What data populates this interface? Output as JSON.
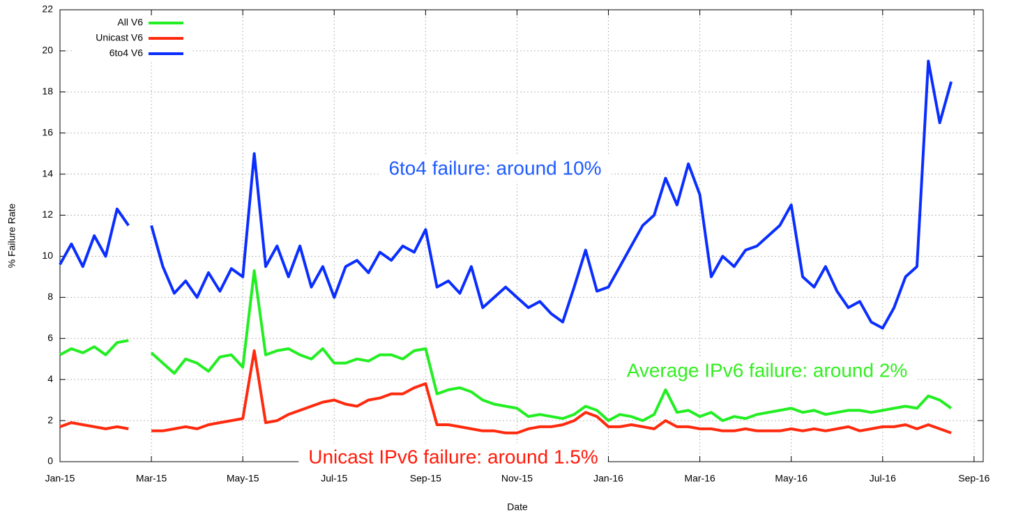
{
  "chart_data": {
    "type": "line",
    "x_label": "Date",
    "y_label": "% Failure Rate",
    "xlim": [
      0,
      20.2
    ],
    "ylim": [
      0,
      22
    ],
    "xticks": [
      {
        "value": 0,
        "label": "Jan-15"
      },
      {
        "value": 2,
        "label": "Mar-15"
      },
      {
        "value": 4,
        "label": "May-15"
      },
      {
        "value": 6,
        "label": "Jul-15"
      },
      {
        "value": 8,
        "label": "Sep-15"
      },
      {
        "value": 10,
        "label": "Nov-15"
      },
      {
        "value": 12,
        "label": "Jan-16"
      },
      {
        "value": 14,
        "label": "Mar-16"
      },
      {
        "value": 16,
        "label": "May-16"
      },
      {
        "value": 18,
        "label": "Jul-16"
      },
      {
        "value": 20,
        "label": "Sep-16"
      }
    ],
    "yticks": [
      0,
      2,
      4,
      6,
      8,
      10,
      12,
      14,
      16,
      18,
      20,
      22
    ],
    "grid": true,
    "legend": "upper left",
    "x": [
      0,
      0.25,
      0.5,
      0.75,
      1,
      1.25,
      1.5,
      1.75,
      2,
      2.25,
      2.5,
      2.75,
      3,
      3.25,
      3.5,
      3.75,
      4,
      4.25,
      4.5,
      4.75,
      5,
      5.25,
      5.5,
      5.75,
      6,
      6.25,
      6.5,
      6.75,
      7,
      7.25,
      7.5,
      7.75,
      8,
      8.25,
      8.5,
      8.75,
      9,
      9.25,
      9.5,
      9.75,
      10,
      10.25,
      10.5,
      10.75,
      11,
      11.25,
      11.5,
      11.75,
      12,
      12.25,
      12.5,
      12.75,
      13,
      13.25,
      13.5,
      13.75,
      14,
      14.25,
      14.5,
      14.75,
      15,
      15.25,
      15.5,
      15.75,
      16,
      16.25,
      16.5,
      16.75,
      17,
      17.25,
      17.5,
      17.75,
      18,
      18.25,
      18.5,
      18.75,
      19,
      19.25,
      19.5
    ],
    "series": [
      {
        "name": "All V6",
        "color": "#22ee22",
        "values": [
          5.2,
          5.5,
          5.3,
          5.6,
          5.2,
          5.8,
          5.9,
          null,
          5.3,
          4.8,
          4.3,
          5.0,
          4.8,
          4.4,
          5.1,
          5.2,
          4.6,
          9.3,
          5.2,
          5.4,
          5.5,
          5.2,
          5.0,
          5.5,
          4.8,
          4.8,
          5.0,
          4.9,
          5.2,
          5.2,
          5.0,
          5.4,
          5.5,
          3.3,
          3.5,
          3.6,
          3.4,
          3.0,
          2.8,
          2.7,
          2.6,
          2.2,
          2.3,
          2.2,
          2.1,
          2.3,
          2.7,
          2.5,
          2.0,
          2.3,
          2.2,
          2.0,
          2.3,
          3.5,
          2.4,
          2.5,
          2.2,
          2.4,
          2.0,
          2.2,
          2.1,
          2.3,
          2.4,
          2.5,
          2.6,
          2.4,
          2.5,
          2.3,
          2.4,
          2.5,
          2.5,
          2.4,
          2.5,
          2.6,
          2.7,
          2.6,
          3.2,
          3.0,
          2.6
        ]
      },
      {
        "name": "Unicast V6",
        "color": "#ff2a0e",
        "values": [
          1.7,
          1.9,
          1.8,
          1.7,
          1.6,
          1.7,
          1.6,
          null,
          1.5,
          1.5,
          1.6,
          1.7,
          1.6,
          1.8,
          1.9,
          2.0,
          2.1,
          5.4,
          1.9,
          2.0,
          2.3,
          2.5,
          2.7,
          2.9,
          3.0,
          2.8,
          2.7,
          3.0,
          3.1,
          3.3,
          3.3,
          3.6,
          3.8,
          1.8,
          1.8,
          1.7,
          1.6,
          1.5,
          1.5,
          1.4,
          1.4,
          1.6,
          1.7,
          1.7,
          1.8,
          2.0,
          2.4,
          2.2,
          1.7,
          1.7,
          1.8,
          1.7,
          1.6,
          2.0,
          1.7,
          1.7,
          1.6,
          1.6,
          1.5,
          1.5,
          1.6,
          1.5,
          1.5,
          1.5,
          1.6,
          1.5,
          1.6,
          1.5,
          1.6,
          1.7,
          1.5,
          1.6,
          1.7,
          1.7,
          1.8,
          1.6,
          1.8,
          1.6,
          1.4
        ]
      },
      {
        "name": "6to4 V6",
        "color": "#0a2eff",
        "values": [
          9.6,
          10.6,
          9.5,
          11.0,
          10.0,
          12.3,
          11.5,
          null,
          11.5,
          9.5,
          8.2,
          8.8,
          8.0,
          9.2,
          8.3,
          9.4,
          9.0,
          15.0,
          9.5,
          10.5,
          9.0,
          10.5,
          8.5,
          9.5,
          8.0,
          9.5,
          9.8,
          9.2,
          10.2,
          9.8,
          10.5,
          10.2,
          11.3,
          8.5,
          8.8,
          8.2,
          9.5,
          7.5,
          8.0,
          8.5,
          8.0,
          7.5,
          7.8,
          7.2,
          6.8,
          8.5,
          10.3,
          8.3,
          8.5,
          9.5,
          10.5,
          11.5,
          12.0,
          13.8,
          12.5,
          14.5,
          13.0,
          9.0,
          10.0,
          9.5,
          10.3,
          10.5,
          11.0,
          11.5,
          12.5,
          9.0,
          8.5,
          9.5,
          8.3,
          7.5,
          7.8,
          6.8,
          6.5,
          7.5,
          9.0,
          9.5,
          19.5,
          16.5,
          18.5
        ]
      }
    ],
    "annotations": [
      {
        "text": "6to4 failure: around 10%",
        "color": "#1f5bff"
      },
      {
        "text": "Average IPv6 failure: around 2%",
        "color": "#33ee22"
      },
      {
        "text": "Unicast IPv6 failure: around 1.5%",
        "color": "#ff1a0a"
      }
    ]
  }
}
